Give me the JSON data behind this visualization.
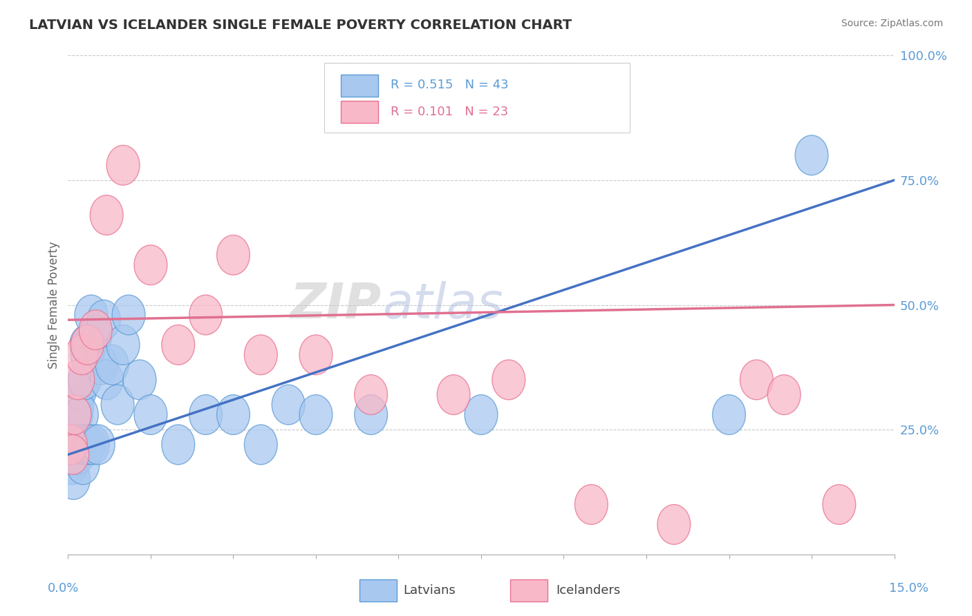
{
  "title": "LATVIAN VS ICELANDER SINGLE FEMALE POVERTY CORRELATION CHART",
  "source": "Source: ZipAtlas.com",
  "ylabel": "Single Female Poverty",
  "xlim": [
    0.0,
    15.0
  ],
  "ylim": [
    0.0,
    100.0
  ],
  "latvian_color": "#A8C8F0",
  "latvian_edge_color": "#5B9BD5",
  "icelander_color": "#F8B8C8",
  "icelander_edge_color": "#E87090",
  "latvian_line_color": "#4472C4",
  "icelander_line_color": "#E07090",
  "legend_text_latvian": "R = 0.515   N = 43",
  "legend_text_icelander": "R = 0.101   N = 23",
  "bottom_legend_latvians": "Latvians",
  "bottom_legend_icelanders": "Icelanders",
  "axis_label_color": "#5B9BD5",
  "title_color": "#333333",
  "latvian_R": 0.515,
  "icelander_R": 0.101,
  "latvian_N": 43,
  "icelander_N": 23,
  "lv_line_x0": 0,
  "lv_line_y0": 20,
  "lv_line_x1": 15,
  "lv_line_y1": 75,
  "ic_line_x0": 0,
  "ic_line_y0": 47,
  "ic_line_x1": 15,
  "ic_line_y1": 50,
  "latvian_x": [
    0.05,
    0.07,
    0.08,
    0.1,
    0.12,
    0.13,
    0.15,
    0.15,
    0.17,
    0.18,
    0.2,
    0.22,
    0.25,
    0.27,
    0.3,
    0.3,
    0.33,
    0.35,
    0.38,
    0.4,
    0.42,
    0.45,
    0.5,
    0.55,
    0.6,
    0.65,
    0.7,
    0.8,
    0.9,
    1.0,
    1.1,
    1.3,
    1.5,
    2.0,
    2.5,
    3.0,
    3.5,
    4.0,
    4.5,
    5.5,
    7.5,
    12.0,
    13.5
  ],
  "latvian_y": [
    22,
    18,
    25,
    15,
    20,
    28,
    22,
    28,
    30,
    20,
    22,
    33,
    28,
    18,
    35,
    22,
    42,
    40,
    22,
    42,
    48,
    22,
    44,
    22,
    38,
    47,
    35,
    38,
    30,
    42,
    48,
    35,
    28,
    22,
    28,
    28,
    22,
    30,
    28,
    28,
    28,
    28,
    80
  ],
  "icelander_x": [
    0.05,
    0.08,
    0.12,
    0.18,
    0.25,
    0.35,
    0.5,
    0.7,
    1.0,
    1.5,
    2.0,
    2.5,
    3.0,
    3.5,
    4.5,
    5.5,
    7.0,
    8.0,
    9.5,
    11.0,
    12.5,
    13.0,
    14.0
  ],
  "icelander_y": [
    22,
    20,
    28,
    35,
    40,
    42,
    45,
    68,
    78,
    58,
    42,
    48,
    60,
    40,
    40,
    32,
    32,
    35,
    10,
    6,
    35,
    32,
    10
  ]
}
